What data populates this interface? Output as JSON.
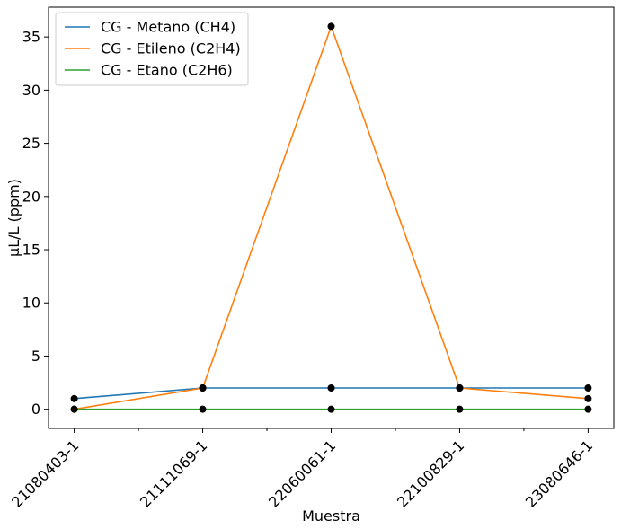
{
  "chart_data": {
    "type": "line",
    "categories": [
      "21080403-1",
      "21111069-1",
      "22060061-1",
      "22100829-1",
      "23080646-1"
    ],
    "series": [
      {
        "name": "CG - Metano (CH4)",
        "color": "#1f77b4",
        "values": [
          1,
          2,
          2,
          2,
          2
        ]
      },
      {
        "name": "CG - Etileno (C2H4)",
        "color": "#ff7f0e",
        "values": [
          0,
          2,
          36,
          2,
          1
        ]
      },
      {
        "name": "CG - Etano (C2H6)",
        "color": "#2ca02c",
        "values": [
          0,
          0,
          0,
          0,
          0
        ]
      }
    ],
    "xlabel": "Muestra",
    "ylabel": "µL/L (ppm)",
    "ylim": [
      -1.8,
      37.8
    ],
    "yticks": [
      0,
      5,
      10,
      15,
      20,
      25,
      30,
      35
    ],
    "marker_color": "#000000",
    "grid": false,
    "legend_position": "top-left"
  }
}
